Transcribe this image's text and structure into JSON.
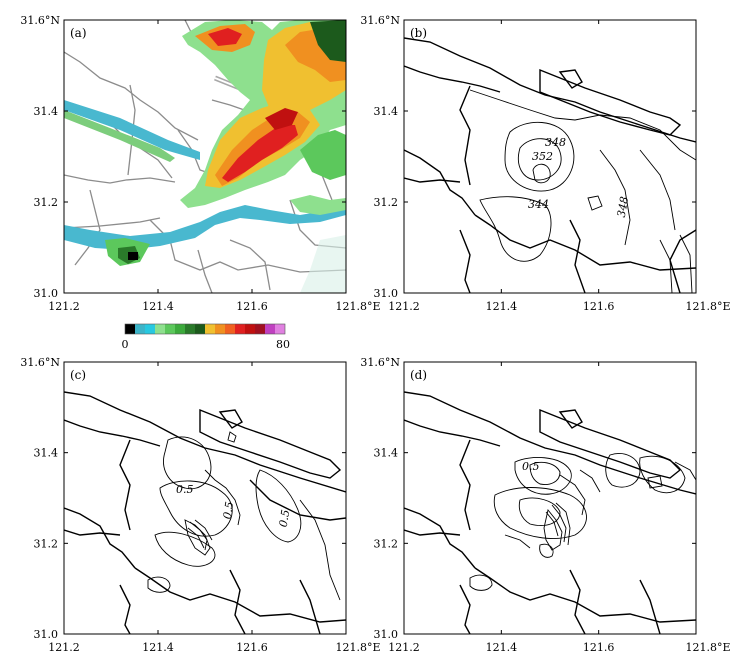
{
  "panels": [
    {
      "id": "a",
      "label": "(a)",
      "type": "radar-reflectivity"
    },
    {
      "id": "b",
      "label": "(b)",
      "type": "contour",
      "contour_labels": [
        "348",
        "352",
        "344",
        "348"
      ]
    },
    {
      "id": "c",
      "label": "(c)",
      "type": "contour",
      "contour_labels": [
        "0.5",
        "0.5",
        "0.5"
      ]
    },
    {
      "id": "d",
      "label": "(d)",
      "type": "contour",
      "contour_labels": [
        "0.5"
      ]
    }
  ],
  "axes": {
    "x_ticks": [
      "121.2",
      "121.4",
      "121.6",
      "121.8°E"
    ],
    "y_ticks": [
      "31.0",
      "31.2",
      "31.4",
      "31.6°N"
    ]
  },
  "colorbar": {
    "min_label": "0",
    "max_label": "80",
    "colors": [
      "#000000",
      "#3cb4c8",
      "#28c8e0",
      "#8ee08e",
      "#5cc85c",
      "#3caa3c",
      "#2a7a2a",
      "#1c5a1c",
      "#f0c030",
      "#f09020",
      "#f06020",
      "#e02020",
      "#c01010",
      "#a01020",
      "#c040c0",
      "#e080e0"
    ]
  }
}
